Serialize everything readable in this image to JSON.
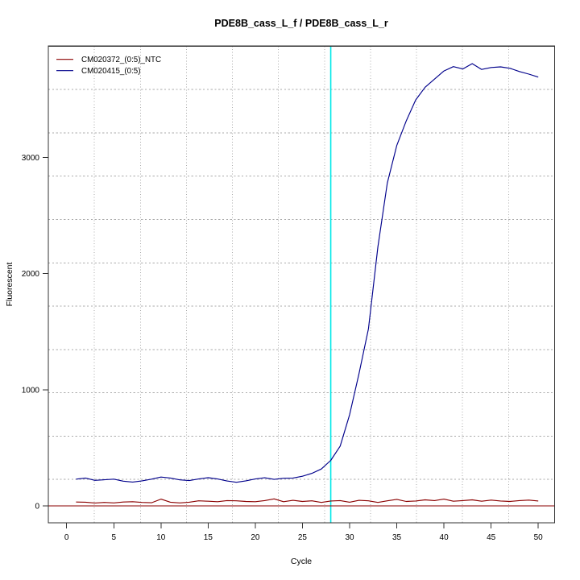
{
  "chart_data": {
    "type": "line",
    "title": "PDE8B_cass_L_f / PDE8B_cass_L_r",
    "xlabel": "Cycle",
    "ylabel": "Fluorescent",
    "x_ticks": [
      0,
      5,
      10,
      15,
      20,
      25,
      30,
      35,
      40,
      45,
      50
    ],
    "y_ticks": [
      0,
      1000,
      2000,
      3000
    ],
    "xlim": [
      -1.9,
      51.9
    ],
    "ylim": [
      -160,
      3960
    ],
    "grid": {
      "nx": 11,
      "ny": 11,
      "color": "#ababab"
    },
    "threshold_line": {
      "cycle": 28,
      "color": "#00e8e8"
    },
    "zero_line": {
      "value": 0,
      "color": "#8b0000"
    },
    "legend_position": "top-left",
    "cycles": [
      1,
      2,
      3,
      4,
      5,
      6,
      7,
      8,
      9,
      10,
      11,
      12,
      13,
      14,
      15,
      16,
      17,
      18,
      19,
      20,
      21,
      22,
      23,
      24,
      25,
      26,
      27,
      28,
      29,
      30,
      31,
      32,
      33,
      34,
      35,
      36,
      37,
      38,
      39,
      40,
      41,
      42,
      43,
      44,
      45,
      46,
      47,
      48,
      49,
      50
    ],
    "series": [
      {
        "name": "CM020372_(0:5)_NTC",
        "color": "#8b0000",
        "values": [
          33,
          32,
          25,
          30,
          26,
          33,
          36,
          30,
          27,
          58,
          32,
          26,
          32,
          44,
          40,
          36,
          46,
          44,
          38,
          36,
          46,
          60,
          36,
          48,
          38,
          44,
          30,
          42,
          46,
          32,
          48,
          44,
          30,
          44,
          56,
          38,
          42,
          52,
          46,
          58,
          40,
          46,
          52,
          40,
          50,
          42,
          38,
          46,
          50,
          42
        ]
      },
      {
        "name": "CM020415_(0:5)",
        "color": "#00008b",
        "values": [
          230,
          240,
          220,
          225,
          230,
          213,
          205,
          216,
          230,
          248,
          240,
          224,
          218,
          232,
          243,
          232,
          214,
          203,
          216,
          232,
          242,
          228,
          238,
          240,
          255,
          280,
          318,
          392,
          515,
          785,
          1140,
          1525,
          2230,
          2780,
          3105,
          3315,
          3495,
          3605,
          3675,
          3745,
          3782,
          3762,
          3808,
          3758,
          3775,
          3780,
          3768,
          3740,
          3718,
          3692
        ]
      }
    ]
  }
}
